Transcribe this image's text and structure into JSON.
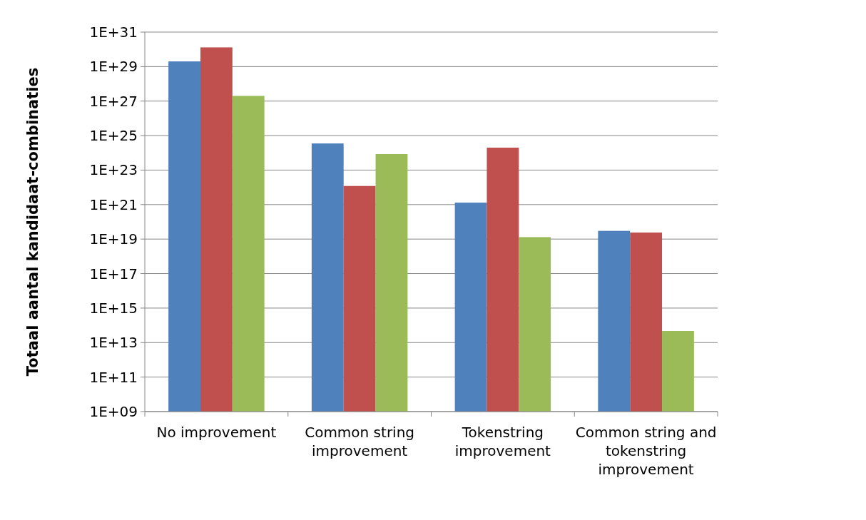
{
  "chart_data": {
    "type": "bar",
    "ylabel": "Totaal aantal kandidaat-combinaties",
    "categories": [
      "No improvement",
      "Common string improvement",
      "Tokenstring improvement",
      "Common string and tokenstring improvement"
    ],
    "series": [
      {
        "color": "#4f81bd",
        "values": [
          2e+29,
          3.5e+24,
          1.3e+21,
          3e+19
        ]
      },
      {
        "color": "#c0504d",
        "values": [
          1.3e+30,
          1.2e+22,
          2e+24,
          2.4e+19
        ]
      },
      {
        "color": "#9bbb59",
        "values": [
          2e+27,
          8.5e+23,
          1.3e+19,
          47000000000000.0
        ]
      }
    ],
    "log": true,
    "ylim": [
      1000000000.0,
      1e+31
    ],
    "yticks": [
      {
        "value": 1000000000.0,
        "label": "1E+09"
      },
      {
        "value": 100000000000.0,
        "label": "1E+11"
      },
      {
        "value": 10000000000000.0,
        "label": "1E+13"
      },
      {
        "value": 1000000000000000.0,
        "label": "1E+15"
      },
      {
        "value": 1e+17,
        "label": "1E+17"
      },
      {
        "value": 1e+19,
        "label": "1E+19"
      },
      {
        "value": 1e+21,
        "label": "1E+21"
      },
      {
        "value": 1e+23,
        "label": "1E+23"
      },
      {
        "value": 1e+25,
        "label": "1E+25"
      },
      {
        "value": 1e+27,
        "label": "1E+27"
      },
      {
        "value": 1e+29,
        "label": "1E+29"
      },
      {
        "value": 1e+31,
        "label": "1E+31"
      }
    ],
    "grid": "y",
    "legend": false
  }
}
